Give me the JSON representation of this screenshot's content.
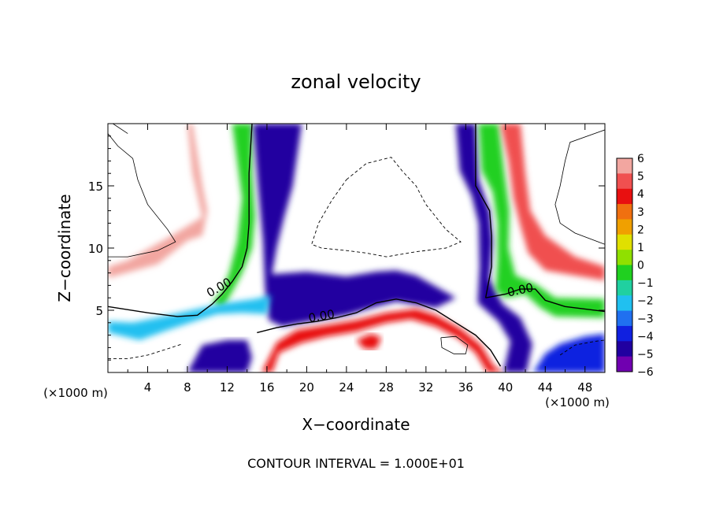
{
  "chart_data": {
    "type": "heatmap",
    "title": "zonal velocity",
    "xlabel": "X−coordinate",
    "ylabel": "Z−coordinate",
    "x_unit_left": "(×1000 m)",
    "x_unit_right": "(×1000 m)",
    "footer": "CONTOUR INTERVAL = 1.000E+01",
    "xlim": [
      0,
      50
    ],
    "ylim": [
      0,
      20
    ],
    "x_ticks": [
      4,
      8,
      12,
      16,
      20,
      24,
      28,
      32,
      36,
      40,
      44,
      48
    ],
    "y_ticks": [
      5,
      10,
      15
    ],
    "colorbar": {
      "min": -6,
      "max": 6,
      "ticks": [
        6,
        5,
        4,
        3,
        2,
        1,
        0,
        -1,
        -2,
        -3,
        -4,
        -5,
        -6
      ],
      "tick_labels": [
        "6",
        "5",
        "4",
        "3",
        "2",
        "1",
        "0",
        "−1",
        "−2",
        "−3",
        "−4",
        "−5",
        "−6"
      ],
      "colors": [
        "#f2a6a0",
        "#f05050",
        "#e81010",
        "#f07010",
        "#f0a000",
        "#e0e000",
        "#90e000",
        "#20d020",
        "#20d0a0",
        "#20c0f0",
        "#2070f0",
        "#1020e0",
        "#2000a0",
        "#7000b0"
      ]
    },
    "contour_labels": [
      {
        "text": "0.00",
        "x": 11.2,
        "y": 6.8,
        "angle": -30
      },
      {
        "text": "0.00",
        "x": 21.5,
        "y": 4.5,
        "angle": -10
      },
      {
        "text": "0.00",
        "x": 41.5,
        "y": 6.6,
        "angle": -12
      }
    ],
    "zero_contours": [
      [
        [
          0,
          5.3
        ],
        [
          4,
          4.8
        ],
        [
          7,
          4.5
        ],
        [
          9,
          4.6
        ],
        [
          10.5,
          5.5
        ],
        [
          11.5,
          6.3
        ],
        [
          12.5,
          7.3
        ],
        [
          13.5,
          8.5
        ],
        [
          14,
          10
        ],
        [
          14.2,
          12
        ],
        [
          14.2,
          14
        ],
        [
          14.2,
          16
        ],
        [
          14.5,
          20
        ]
      ],
      [
        [
          15,
          3.2
        ],
        [
          17,
          3.6
        ],
        [
          19,
          3.9
        ],
        [
          21,
          4.1
        ],
        [
          23,
          4.4
        ],
        [
          25,
          4.8
        ],
        [
          27,
          5.6
        ],
        [
          29,
          5.9
        ],
        [
          31,
          5.6
        ],
        [
          33,
          5.0
        ],
        [
          35,
          4.0
        ],
        [
          37,
          3.0
        ],
        [
          38.5,
          1.8
        ],
        [
          39.5,
          0.5
        ]
      ],
      [
        [
          38,
          6.0
        ],
        [
          40,
          6.3
        ],
        [
          41.5,
          6.7
        ],
        [
          43,
          6.7
        ],
        [
          44,
          5.8
        ],
        [
          46,
          5.3
        ],
        [
          50,
          4.9
        ]
      ],
      [
        [
          38,
          6.0
        ],
        [
          38.6,
          8.5
        ],
        [
          38.6,
          11
        ],
        [
          38.4,
          13
        ],
        [
          37,
          15
        ],
        [
          37,
          20
        ]
      ]
    ],
    "regions": [
      {
        "value": 6,
        "path": [
          [
            5,
            20
          ],
          [
            8,
            20
          ],
          [
            8.5,
            16
          ],
          [
            9.5,
            12.5
          ],
          [
            6,
            10.8
          ],
          [
            2,
            9
          ],
          [
            0,
            8.5
          ],
          [
            0,
            7.6
          ],
          [
            5,
            8.7
          ],
          [
            8,
            10.6
          ],
          [
            9.5,
            11
          ],
          [
            10,
            13
          ],
          [
            9.5,
            15
          ],
          [
            9,
            17.5
          ],
          [
            8.5,
            20
          ]
        ]
      },
      {
        "value": 0,
        "path": [
          [
            10,
            20
          ],
          [
            12.5,
            20
          ],
          [
            13.5,
            14
          ],
          [
            13,
            10.5
          ],
          [
            12.2,
            8
          ],
          [
            11.5,
            6.6
          ],
          [
            10.5,
            5.6
          ],
          [
            11.6,
            5.2
          ],
          [
            12.5,
            6.5
          ],
          [
            13.5,
            8
          ],
          [
            14.5,
            10
          ],
          [
            14.8,
            12.5
          ],
          [
            14.5,
            16
          ],
          [
            14.5,
            20
          ]
        ]
      },
      {
        "value": -5,
        "path": [
          [
            14.7,
            20
          ],
          [
            19.5,
            20
          ],
          [
            18.6,
            15
          ],
          [
            17.7,
            12.4
          ],
          [
            17,
            10.1
          ],
          [
            16.5,
            7.9
          ],
          [
            20,
            8.1
          ],
          [
            24,
            7.7
          ],
          [
            27,
            8.1
          ],
          [
            29,
            8.2
          ],
          [
            31,
            7.8
          ],
          [
            33,
            6.9
          ],
          [
            35,
            6.0
          ],
          [
            33,
            5.2
          ],
          [
            29,
            5.7
          ],
          [
            27,
            5.3
          ],
          [
            24,
            4.6
          ],
          [
            21,
            4.2
          ],
          [
            17.5,
            3.7
          ],
          [
            16.2,
            4.2
          ],
          [
            15.8,
            6.8
          ],
          [
            15.6,
            10.5
          ],
          [
            15.1,
            15
          ],
          [
            14.6,
            20
          ]
        ]
      },
      {
        "value": -2,
        "path": [
          [
            0,
            3.2
          ],
          [
            3.2,
            2.6
          ],
          [
            6,
            3.4
          ],
          [
            9,
            4.2
          ],
          [
            11,
            4.7
          ],
          [
            13.5,
            4.8
          ],
          [
            16,
            4.7
          ],
          [
            16.4,
            6.2
          ],
          [
            14.8,
            5.9
          ],
          [
            12,
            5.6
          ],
          [
            9,
            5.1
          ],
          [
            5,
            4.4
          ],
          [
            2.5,
            4.0
          ],
          [
            0,
            4.1
          ]
        ]
      },
      {
        "value": 4,
        "path": [
          [
            15.5,
            0
          ],
          [
            17,
            2.4
          ],
          [
            19,
            3.4
          ],
          [
            22,
            3.8
          ],
          [
            25,
            4.2
          ],
          [
            28,
            4.8
          ],
          [
            31,
            5.1
          ],
          [
            33,
            4.6
          ],
          [
            35.5,
            3.5
          ],
          [
            37.5,
            2.2
          ],
          [
            38.8,
            0.5
          ],
          [
            39.8,
            0
          ],
          [
            38.2,
            0
          ],
          [
            37,
            1.6
          ],
          [
            35.2,
            2.8
          ],
          [
            33,
            3.7
          ],
          [
            30.5,
            4.3
          ],
          [
            28,
            4.0
          ],
          [
            25,
            3.3
          ],
          [
            22,
            2.9
          ],
          [
            19.5,
            2.4
          ],
          [
            17.2,
            1.6
          ],
          [
            16.5,
            0
          ]
        ]
      },
      {
        "value": -5,
        "path": [
          [
            35,
            20
          ],
          [
            37,
            20
          ],
          [
            37.3,
            15.5
          ],
          [
            38.4,
            13
          ],
          [
            38.7,
            10.5
          ],
          [
            38.4,
            7.5
          ],
          [
            39.7,
            5.5
          ],
          [
            41.5,
            4.4
          ],
          [
            42.7,
            2.3
          ],
          [
            42.1,
            0
          ],
          [
            39.8,
            0
          ],
          [
            40.5,
            2.5
          ],
          [
            39.3,
            4.1
          ],
          [
            37.2,
            5.6
          ],
          [
            37.4,
            8.5
          ],
          [
            37.3,
            12
          ],
          [
            36.6,
            14.2
          ],
          [
            35.4,
            16.2
          ]
        ]
      },
      {
        "value": 0,
        "path": [
          [
            37.3,
            20
          ],
          [
            39.3,
            20
          ],
          [
            39.9,
            16
          ],
          [
            40.4,
            13
          ],
          [
            40.3,
            10
          ],
          [
            41,
            7.8
          ],
          [
            43,
            7.1
          ],
          [
            45,
            6.0
          ],
          [
            50,
            5.9
          ],
          [
            50,
            4.4
          ],
          [
            45,
            4.5
          ],
          [
            43.5,
            5.2
          ],
          [
            42,
            6.3
          ],
          [
            40,
            6.0
          ],
          [
            39,
            6.6
          ],
          [
            39.2,
            9
          ],
          [
            39.2,
            12
          ],
          [
            38.7,
            14.5
          ],
          [
            37.6,
            16.2
          ]
        ]
      },
      {
        "value": 5,
        "path": [
          [
            39.5,
            20
          ],
          [
            41.5,
            20
          ],
          [
            42,
            16
          ],
          [
            42.5,
            13
          ],
          [
            44,
            11
          ],
          [
            47,
            9.3
          ],
          [
            50,
            8.5
          ],
          [
            50,
            7.4
          ],
          [
            47,
            7.8
          ],
          [
            44,
            8.2
          ],
          [
            42.3,
            9.6
          ],
          [
            41.5,
            11.8
          ],
          [
            40.8,
            14
          ],
          [
            40.3,
            17
          ]
        ]
      },
      {
        "value": -5,
        "path": [
          [
            8,
            0
          ],
          [
            9.5,
            2.2
          ],
          [
            12,
            2.6
          ],
          [
            14,
            2.6
          ],
          [
            14.5,
            1.2
          ],
          [
            14,
            0
          ]
        ]
      },
      {
        "value": -4,
        "path": [
          [
            42.8,
            0
          ],
          [
            44,
            1.5
          ],
          [
            45.5,
            2.3
          ],
          [
            48,
            2.9
          ],
          [
            50,
            3.1
          ],
          [
            50,
            0
          ]
        ]
      },
      {
        "value": 4,
        "path": [
          [
            25,
            2.6
          ],
          [
            26.5,
            3.1
          ],
          [
            27.5,
            2.8
          ],
          [
            27,
            1.9
          ],
          [
            25.8,
            1.9
          ]
        ]
      }
    ],
    "thin_contours": [
      [
        [
          0,
          19.2
        ],
        [
          1,
          18.2
        ],
        [
          2.5,
          17.2
        ],
        [
          3,
          15.5
        ],
        [
          4,
          13.5
        ],
        [
          6,
          11.5
        ],
        [
          6.8,
          10.5
        ],
        [
          5,
          9.8
        ],
        [
          2,
          9.3
        ],
        [
          0,
          9.3
        ]
      ],
      [
        [
          0.5,
          20
        ],
        [
          2,
          19.2
        ]
      ],
      [
        [
          50,
          19.5
        ],
        [
          46.5,
          18.5
        ],
        [
          46,
          17
        ],
        [
          45.5,
          15
        ],
        [
          45,
          13.5
        ],
        [
          45.5,
          12
        ],
        [
          47,
          11.2
        ],
        [
          50,
          10.3
        ]
      ],
      [
        [
          33.5,
          2.8
        ],
        [
          35,
          2.9
        ],
        [
          36.2,
          2.2
        ],
        [
          36,
          1.5
        ],
        [
          34.8,
          1.5
        ],
        [
          33.6,
          2.0
        ],
        [
          33.5,
          2.8
        ]
      ]
    ],
    "dashed_contours": [
      [
        [
          24,
          15.5
        ],
        [
          26,
          16.8
        ],
        [
          28.5,
          17.3
        ],
        [
          29.6,
          16.2
        ],
        [
          31,
          15
        ],
        [
          32,
          13.5
        ],
        [
          34,
          11.5
        ],
        [
          35.5,
          10.5
        ],
        [
          34,
          10
        ],
        [
          31,
          9.7
        ],
        [
          28,
          9.3
        ],
        [
          26,
          9.6
        ],
        [
          24,
          9.8
        ],
        [
          21.5,
          10
        ],
        [
          20.5,
          10.3
        ],
        [
          21.2,
          12
        ],
        [
          22.5,
          13.8
        ],
        [
          24,
          15.5
        ]
      ],
      [
        [
          0,
          1.1
        ],
        [
          2,
          1.1
        ],
        [
          4,
          1.4
        ],
        [
          6,
          1.9
        ],
        [
          7.5,
          2.3
        ]
      ],
      [
        [
          45.5,
          1.4
        ],
        [
          47,
          2.2
        ],
        [
          49,
          2.5
        ],
        [
          50,
          2.6
        ]
      ]
    ]
  }
}
